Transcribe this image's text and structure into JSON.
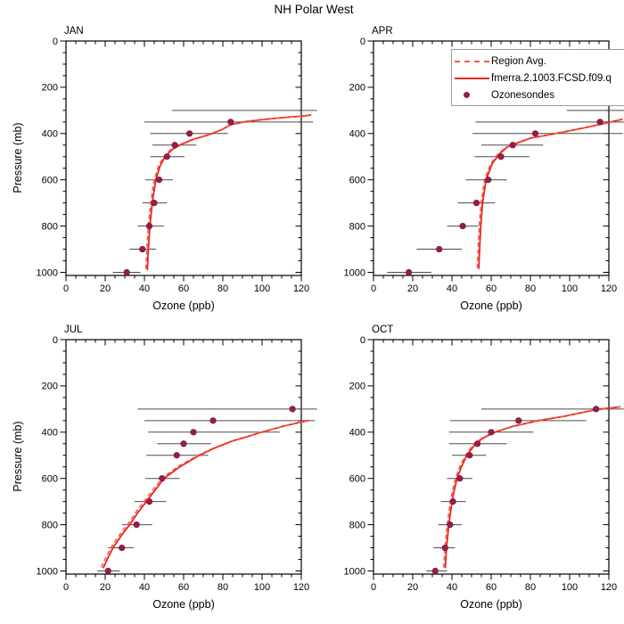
{
  "title": "NH Polar West",
  "axis": {
    "x_label": "Ozone (ppb)",
    "y_label": "Pressure (mb)",
    "x_ticks": [
      0,
      20,
      40,
      60,
      80,
      100,
      120
    ],
    "y_ticks": [
      0,
      200,
      400,
      600,
      800,
      1000
    ],
    "x_minor_step": 5,
    "y_minor_step": 50,
    "x_range": [
      0,
      120
    ],
    "y_range": [
      0,
      1013
    ],
    "y_inverted": true
  },
  "legend": {
    "entries": [
      {
        "label": "Region Avg.",
        "style": "dashed-line",
        "color": "#f4564a"
      },
      {
        "label": "fmerra.2.1003.FCSD.f09.q",
        "style": "solid-line",
        "color": "#e8251a"
      },
      {
        "label": "Ozonesondes",
        "style": "dot",
        "color": "#9a1c4a"
      }
    ]
  },
  "colors": {
    "frame": "#000000",
    "error_bar": "#4c4c4c",
    "model_red": "#e8251a",
    "region_red": "#f4564a",
    "sonde_maroon": "#9a1c4a",
    "sonde_edge": "#701236",
    "legend_border": "#9b9b9b"
  },
  "chart_data": [
    {
      "type": "line",
      "month": "JAN",
      "model": [
        [
          41.5,
          990
        ],
        [
          42,
          900
        ],
        [
          42.8,
          800
        ],
        [
          44,
          700
        ],
        [
          45.8,
          600
        ],
        [
          48,
          540
        ],
        [
          50.5,
          500
        ],
        [
          54,
          470
        ],
        [
          58,
          450
        ],
        [
          65,
          425
        ],
        [
          73,
          405
        ],
        [
          79,
          385
        ],
        [
          84,
          362
        ],
        [
          92,
          348
        ],
        [
          102,
          338
        ],
        [
          112,
          330
        ],
        [
          120,
          325
        ],
        [
          125,
          320
        ]
      ],
      "region_avg": [
        [
          40.7,
          985
        ],
        [
          41.2,
          900
        ],
        [
          42,
          800
        ],
        [
          43.2,
          700
        ],
        [
          45,
          600
        ],
        [
          47.2,
          540
        ],
        [
          49.8,
          500
        ],
        [
          53.3,
          470
        ],
        [
          57.3,
          450
        ],
        [
          64.3,
          425
        ],
        [
          72.5,
          405
        ],
        [
          78.6,
          385
        ],
        [
          84,
          363
        ],
        [
          92,
          349
        ],
        [
          102,
          339
        ],
        [
          112,
          331
        ],
        [
          120,
          326
        ],
        [
          125,
          321
        ]
      ],
      "sondes": [
        {
          "p": 300,
          "o": null,
          "lo": 54,
          "hi": 128
        },
        {
          "p": 350,
          "o": 84,
          "lo": 40,
          "hi": 126
        },
        {
          "p": 400,
          "o": 63,
          "lo": 43,
          "hi": 82.5
        },
        {
          "p": 450,
          "o": 55.5,
          "lo": 44,
          "hi": 66.5
        },
        {
          "p": 500,
          "o": 51.5,
          "lo": 43,
          "hi": 60.5
        },
        {
          "p": 600,
          "o": 47.5,
          "lo": 40.5,
          "hi": 54.5
        },
        {
          "p": 700,
          "o": 45,
          "lo": 39,
          "hi": 51.5
        },
        {
          "p": 800,
          "o": 42.5,
          "lo": 36.5,
          "hi": 50
        },
        {
          "p": 900,
          "o": 39,
          "lo": 32.5,
          "hi": 46
        },
        {
          "p": 1000,
          "o": 31,
          "lo": 24,
          "hi": 38
        }
      ]
    },
    {
      "type": "line",
      "month": "APR",
      "model": [
        [
          53.7,
          985
        ],
        [
          54.1,
          900
        ],
        [
          54.7,
          800
        ],
        [
          55.6,
          700
        ],
        [
          57.4,
          600
        ],
        [
          60.5,
          530
        ],
        [
          64,
          490
        ],
        [
          68,
          460
        ],
        [
          72,
          445
        ],
        [
          80,
          420
        ],
        [
          91,
          403
        ],
        [
          102,
          385
        ],
        [
          112,
          367
        ],
        [
          118,
          356
        ],
        [
          122,
          348
        ],
        [
          127,
          338
        ]
      ],
      "region_avg": [
        [
          52.9,
          982
        ],
        [
          53.3,
          900
        ],
        [
          53.9,
          800
        ],
        [
          54.8,
          700
        ],
        [
          56.6,
          600
        ],
        [
          59.8,
          530
        ],
        [
          63.3,
          490
        ],
        [
          67.4,
          460
        ],
        [
          71.5,
          445
        ],
        [
          79.6,
          420
        ],
        [
          90.7,
          403
        ],
        [
          101.8,
          386
        ],
        [
          112,
          368
        ],
        [
          118,
          357
        ],
        [
          122,
          349
        ],
        [
          127,
          339
        ]
      ],
      "sondes": [
        {
          "p": 300,
          "o": null,
          "lo": 98.5,
          "hi": 128
        },
        {
          "p": 350,
          "o": 115.5,
          "lo": 52,
          "hi": 128
        },
        {
          "p": 400,
          "o": 82.5,
          "lo": 50.5,
          "hi": 127
        },
        {
          "p": 450,
          "o": 71,
          "lo": 55,
          "hi": 86.5
        },
        {
          "p": 500,
          "o": 65,
          "lo": 51.5,
          "hi": 79.5
        },
        {
          "p": 600,
          "o": 58.5,
          "lo": 47,
          "hi": 68
        },
        {
          "p": 700,
          "o": 52.5,
          "lo": 43,
          "hi": 62
        },
        {
          "p": 800,
          "o": 45.5,
          "lo": 37.5,
          "hi": 53.5
        },
        {
          "p": 900,
          "o": 33.5,
          "lo": 22,
          "hi": 45
        },
        {
          "p": 1000,
          "o": 18,
          "lo": 7,
          "hi": 29.5
        }
      ]
    },
    {
      "type": "line",
      "month": "JUL",
      "model": [
        [
          19,
          988
        ],
        [
          21,
          950
        ],
        [
          24,
          900
        ],
        [
          28,
          850
        ],
        [
          32.5,
          800
        ],
        [
          36.5,
          750
        ],
        [
          41,
          700
        ],
        [
          45.5,
          650
        ],
        [
          50,
          600
        ],
        [
          58,
          550
        ],
        [
          68,
          500
        ],
        [
          76,
          468
        ],
        [
          85,
          438
        ],
        [
          93,
          418
        ],
        [
          99,
          402
        ],
        [
          105,
          388
        ],
        [
          111,
          374
        ],
        [
          117,
          362
        ],
        [
          120,
          356
        ],
        [
          124,
          349
        ]
      ],
      "region_avg": [
        [
          18,
          985
        ],
        [
          20,
          948
        ],
        [
          23,
          898
        ],
        [
          27,
          848
        ],
        [
          31.5,
          798
        ],
        [
          35.5,
          748
        ],
        [
          40,
          698
        ],
        [
          44.5,
          648
        ],
        [
          49,
          599
        ],
        [
          57,
          549
        ],
        [
          67.2,
          500
        ],
        [
          75.3,
          468
        ],
        [
          84.4,
          438
        ],
        [
          92.5,
          418
        ],
        [
          98.6,
          402
        ],
        [
          104.7,
          388
        ],
        [
          110.8,
          374
        ],
        [
          117,
          363
        ],
        [
          120,
          357
        ],
        [
          124,
          350
        ]
      ],
      "sondes": [
        {
          "p": 300,
          "o": 115.5,
          "lo": 36.5,
          "hi": 128
        },
        {
          "p": 350,
          "o": 75,
          "lo": 40,
          "hi": 127
        },
        {
          "p": 400,
          "o": 65,
          "lo": 42,
          "hi": 109
        },
        {
          "p": 450,
          "o": 60,
          "lo": 46.5,
          "hi": 74
        },
        {
          "p": 500,
          "o": 56.5,
          "lo": 41,
          "hi": 72.5
        },
        {
          "p": 600,
          "o": 49,
          "lo": 40.5,
          "hi": 58
        },
        {
          "p": 700,
          "o": 42.5,
          "lo": 35,
          "hi": 51
        },
        {
          "p": 800,
          "o": 36,
          "lo": 28.5,
          "hi": 44
        },
        {
          "p": 900,
          "o": 28.5,
          "lo": 21.5,
          "hi": 34.5
        },
        {
          "p": 1000,
          "o": 21.5,
          "lo": 16,
          "hi": 27.5
        }
      ]
    },
    {
      "type": "line",
      "month": "OCT",
      "model": [
        [
          36.6,
          988
        ],
        [
          37.2,
          900
        ],
        [
          38.4,
          800
        ],
        [
          40,
          700
        ],
        [
          41.2,
          650
        ],
        [
          42.6,
          600
        ],
        [
          44.8,
          550
        ],
        [
          47.6,
          500
        ],
        [
          52,
          450
        ],
        [
          56,
          425
        ],
        [
          62,
          400
        ],
        [
          71,
          375
        ],
        [
          84,
          350
        ],
        [
          97,
          332
        ],
        [
          108,
          312
        ],
        [
          114,
          302
        ],
        [
          120,
          296
        ],
        [
          126,
          290
        ]
      ],
      "region_avg": [
        [
          35.8,
          985
        ],
        [
          36.4,
          898
        ],
        [
          37.6,
          798
        ],
        [
          39.2,
          699
        ],
        [
          40.4,
          649
        ],
        [
          41.8,
          599
        ],
        [
          44,
          549
        ],
        [
          46.8,
          500
        ],
        [
          51.3,
          450
        ],
        [
          55.4,
          425
        ],
        [
          61.4,
          400
        ],
        [
          70.5,
          375
        ],
        [
          83.6,
          351
        ],
        [
          96.7,
          333
        ],
        [
          108,
          313
        ],
        [
          114,
          303
        ],
        [
          120,
          297
        ],
        [
          126,
          291
        ]
      ],
      "sondes": [
        {
          "p": 300,
          "o": 113.5,
          "lo": 55,
          "hi": 128
        },
        {
          "p": 350,
          "o": 74,
          "lo": 39,
          "hi": 108.5
        },
        {
          "p": 400,
          "o": 60,
          "lo": 38.5,
          "hi": 81.5
        },
        {
          "p": 450,
          "o": 53,
          "lo": 38.5,
          "hi": 68
        },
        {
          "p": 500,
          "o": 49,
          "lo": 40,
          "hi": 57.5
        },
        {
          "p": 600,
          "o": 44,
          "lo": 37.5,
          "hi": 50.5
        },
        {
          "p": 700,
          "o": 40.5,
          "lo": 34.5,
          "hi": 47
        },
        {
          "p": 800,
          "o": 39,
          "lo": 33,
          "hi": 45
        },
        {
          "p": 900,
          "o": 36.5,
          "lo": 30.5,
          "hi": 41.5
        },
        {
          "p": 1000,
          "o": 31.5,
          "lo": 27,
          "hi": 37.5
        }
      ]
    }
  ]
}
